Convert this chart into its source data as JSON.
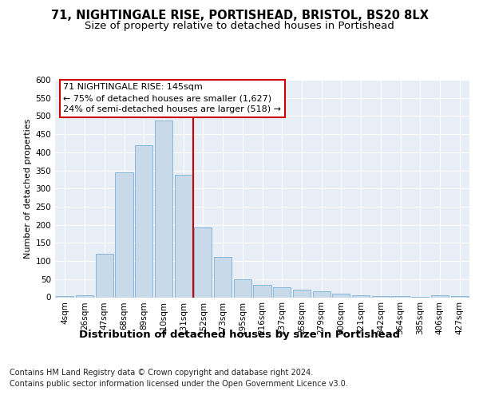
{
  "title1": "71, NIGHTINGALE RISE, PORTISHEAD, BRISTOL, BS20 8LX",
  "title2": "Size of property relative to detached houses in Portishead",
  "xlabel": "Distribution of detached houses by size in Portishead",
  "ylabel": "Number of detached properties",
  "categories": [
    "4sqm",
    "26sqm",
    "47sqm",
    "68sqm",
    "89sqm",
    "110sqm",
    "131sqm",
    "152sqm",
    "173sqm",
    "195sqm",
    "216sqm",
    "237sqm",
    "258sqm",
    "279sqm",
    "300sqm",
    "321sqm",
    "342sqm",
    "364sqm",
    "385sqm",
    "406sqm",
    "427sqm"
  ],
  "values": [
    4,
    6,
    120,
    345,
    420,
    487,
    337,
    193,
    111,
    50,
    35,
    28,
    20,
    17,
    10,
    5,
    3,
    3,
    2,
    5,
    4
  ],
  "bar_color": "#c8d9ea",
  "bar_edge_color": "#7bafd4",
  "vline_x_idx": 7,
  "vline_color": "#cc0000",
  "annotation_text": "71 NIGHTINGALE RISE: 145sqm\n← 75% of detached houses are smaller (1,627)\n24% of semi-detached houses are larger (518) →",
  "annotation_box_color": "#ffffff",
  "annotation_box_edge": "#cc0000",
  "ylim": [
    0,
    600
  ],
  "yticks": [
    0,
    50,
    100,
    150,
    200,
    250,
    300,
    350,
    400,
    450,
    500,
    550,
    600
  ],
  "footer1": "Contains HM Land Registry data © Crown copyright and database right 2024.",
  "footer2": "Contains public sector information licensed under the Open Government Licence v3.0.",
  "bg_color": "#ffffff",
  "plot_bg_color": "#e8eef5",
  "title1_fontsize": 10.5,
  "title2_fontsize": 9.5,
  "xlabel_fontsize": 9.5,
  "ylabel_fontsize": 8,
  "tick_fontsize": 7.5,
  "annotation_fontsize": 8,
  "footer_fontsize": 7
}
